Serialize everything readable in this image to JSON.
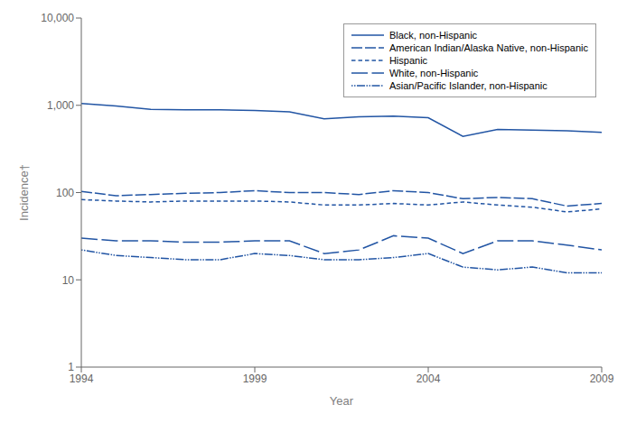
{
  "chart_data": {
    "type": "line",
    "x": [
      1994,
      1995,
      1996,
      1997,
      1998,
      1999,
      2000,
      2001,
      2002,
      2003,
      2004,
      2005,
      2006,
      2007,
      2008,
      2009
    ],
    "xlabel": "Year",
    "ylabel": "Incidence†",
    "xlim": [
      1994,
      2009
    ],
    "xticks": [
      1994,
      1999,
      2004,
      2009
    ],
    "ylim": [
      1,
      10000
    ],
    "yticks": [
      1,
      10,
      100,
      {
        "value": 1000,
        "label": "1,000"
      },
      {
        "value": 10000,
        "label": "10,000"
      }
    ],
    "log": "y",
    "grid": false,
    "legend": "upper right",
    "series": [
      {
        "name": "Black, non-Hispanic",
        "color": "#2255a4",
        "line_style": "solid",
        "values": [
          1050,
          980,
          900,
          890,
          890,
          870,
          840,
          700,
          740,
          750,
          720,
          440,
          530,
          520,
          510,
          490
        ]
      },
      {
        "name": "American Indian/Alaska Native, non-Hispanic",
        "color": "#2255a4",
        "line_style": "longdash",
        "values": [
          103,
          92,
          95,
          98,
          100,
          105,
          100,
          100,
          95,
          105,
          100,
          85,
          88,
          85,
          70,
          75
        ]
      },
      {
        "name": "Hispanic",
        "color": "#2255a4",
        "line_style": "shortdash",
        "values": [
          83,
          80,
          78,
          80,
          80,
          80,
          78,
          72,
          72,
          75,
          72,
          78,
          72,
          68,
          60,
          65
        ]
      },
      {
        "name": "White, non-Hispanic",
        "color": "#2255a4",
        "line_style": "dashed",
        "values": [
          30,
          28,
          28,
          27,
          27,
          28,
          28,
          20,
          22,
          32,
          30,
          20,
          28,
          28,
          25,
          22
        ]
      },
      {
        "name": "Asian/Pacific Islander, non-Hispanic",
        "color": "#2255a4",
        "line_style": "dashdotdot",
        "values": [
          22,
          19,
          18,
          17,
          17,
          20,
          19,
          17,
          17,
          18,
          20,
          14,
          13,
          14,
          12,
          12
        ]
      }
    ]
  }
}
